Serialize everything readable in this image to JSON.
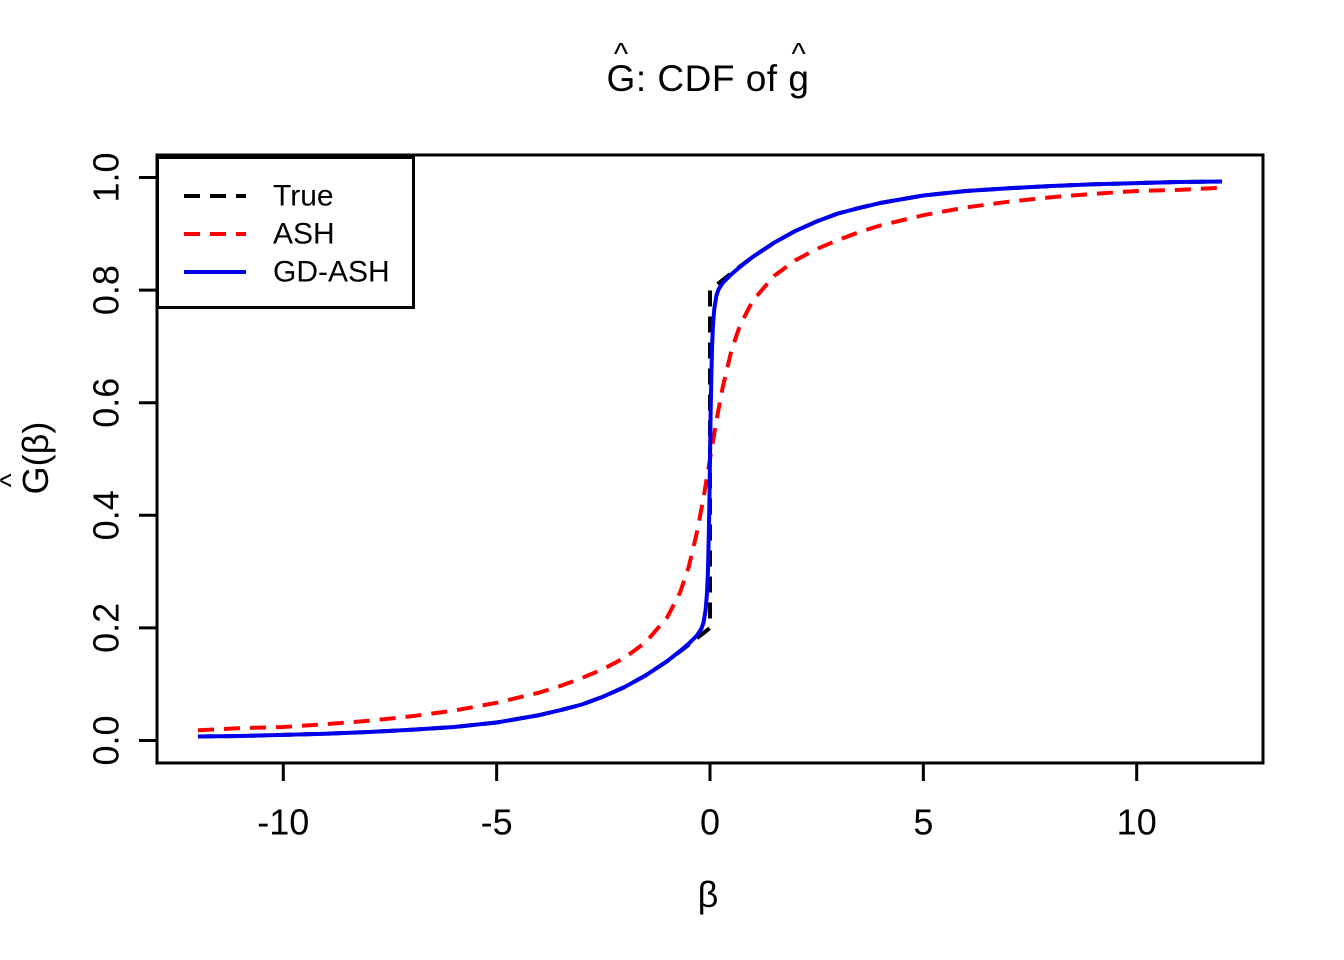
{
  "title": {
    "text": "Ĝ: CDF of ĝ",
    "hat": "^",
    "g_upper": "G",
    "middle": ": CDF of ",
    "g_lower": "g"
  },
  "x_axis": {
    "label": "β",
    "ticks": [
      {
        "value": -10,
        "label": "-10"
      },
      {
        "value": -5,
        "label": "-5"
      },
      {
        "value": 0,
        "label": "0"
      },
      {
        "value": 5,
        "label": "5"
      },
      {
        "value": 10,
        "label": "10"
      }
    ]
  },
  "y_axis": {
    "label_hat": "^",
    "label_g": "G",
    "label_rest": "(β)",
    "ticks": [
      {
        "value": 0.0,
        "label": "0.0"
      },
      {
        "value": 0.2,
        "label": "0.2"
      },
      {
        "value": 0.4,
        "label": "0.4"
      },
      {
        "value": 0.6,
        "label": "0.6"
      },
      {
        "value": 0.8,
        "label": "0.8"
      },
      {
        "value": 1.0,
        "label": "1.0"
      }
    ]
  },
  "legend": {
    "entries": [
      {
        "label": "True",
        "color": "#000000",
        "style": "dashed"
      },
      {
        "label": "ASH",
        "color": "#ff0000",
        "style": "dashed"
      },
      {
        "label": "GD-ASH",
        "color": "#0000ee",
        "style": "solid"
      }
    ]
  },
  "colors": {
    "axis": "#000000",
    "true_line": "#000000",
    "ash_line": "#ff0000",
    "gdash_line": "#0000ee",
    "background": "#ffffff"
  },
  "chart_data": {
    "type": "line",
    "title": "Ĝ: CDF of ĝ",
    "xlabel": "β",
    "ylabel": "Ĝ(β)",
    "xlim": [
      -12.96,
      12.96
    ],
    "ylim": [
      -0.04,
      1.04
    ],
    "grid": false,
    "legend_position": "topleft",
    "series": [
      {
        "name": "True",
        "color": "#000000",
        "style": "dashed",
        "x": [
          -12,
          -11,
          -10,
          -9,
          -8,
          -7,
          -6,
          -5,
          -4,
          -3.5,
          -3,
          -2.5,
          -2,
          -1.5,
          -1,
          -0.7,
          -0.5,
          -0.3,
          -0.15,
          -0.05,
          0,
          0,
          0.05,
          0.15,
          0.3,
          0.5,
          0.7,
          1,
          1.5,
          2,
          2.5,
          3,
          3.5,
          4,
          5,
          6,
          7,
          8,
          9,
          10,
          11,
          12
        ],
        "y": [
          0.007,
          0.008,
          0.01,
          0.012,
          0.015,
          0.019,
          0.024,
          0.032,
          0.045,
          0.054,
          0.064,
          0.078,
          0.095,
          0.116,
          0.141,
          0.158,
          0.17,
          0.182,
          0.191,
          0.197,
          0.2,
          0.8,
          0.803,
          0.809,
          0.818,
          0.83,
          0.842,
          0.859,
          0.884,
          0.905,
          0.922,
          0.936,
          0.946,
          0.955,
          0.968,
          0.976,
          0.981,
          0.985,
          0.988,
          0.99,
          0.992,
          0.993
        ]
      },
      {
        "name": "ASH",
        "color": "#ff0000",
        "style": "dashed",
        "x": [
          -12,
          -11,
          -10,
          -9,
          -8,
          -7,
          -6,
          -5,
          -4,
          -3.5,
          -3,
          -2.5,
          -2,
          -1.5,
          -1,
          -0.7,
          -0.5,
          -0.3,
          -0.15,
          0,
          0.15,
          0.3,
          0.5,
          0.7,
          1,
          1.5,
          2,
          2.5,
          3,
          3.5,
          4,
          5,
          6,
          7,
          8,
          9,
          10,
          11,
          12
        ],
        "y": [
          0.018,
          0.022,
          0.024,
          0.029,
          0.035,
          0.043,
          0.053,
          0.067,
          0.085,
          0.097,
          0.111,
          0.127,
          0.147,
          0.175,
          0.219,
          0.263,
          0.308,
          0.372,
          0.432,
          0.5,
          0.568,
          0.628,
          0.692,
          0.737,
          0.781,
          0.825,
          0.853,
          0.873,
          0.889,
          0.903,
          0.915,
          0.933,
          0.947,
          0.957,
          0.965,
          0.971,
          0.976,
          0.978,
          0.982
        ]
      },
      {
        "name": "GD-ASH",
        "color": "#0000ee",
        "style": "solid",
        "x": [
          -12,
          -11,
          -10,
          -9,
          -8,
          -7,
          -6,
          -5,
          -4,
          -3.5,
          -3,
          -2.5,
          -2,
          -1.5,
          -1,
          -0.7,
          -0.5,
          -0.3,
          -0.2,
          -0.15,
          -0.1,
          -0.07,
          -0.05,
          -0.03,
          -0.015,
          0,
          0.015,
          0.03,
          0.05,
          0.07,
          0.1,
          0.15,
          0.2,
          0.3,
          0.5,
          0.7,
          1,
          1.5,
          2,
          2.5,
          3,
          3.5,
          4,
          5,
          6,
          7,
          8,
          9,
          10,
          11,
          12
        ],
        "y": [
          0.007,
          0.008,
          0.01,
          0.012,
          0.015,
          0.019,
          0.024,
          0.032,
          0.045,
          0.054,
          0.064,
          0.078,
          0.095,
          0.116,
          0.141,
          0.159,
          0.172,
          0.187,
          0.199,
          0.21,
          0.233,
          0.262,
          0.298,
          0.358,
          0.422,
          0.5,
          0.578,
          0.642,
          0.702,
          0.738,
          0.767,
          0.79,
          0.801,
          0.813,
          0.828,
          0.841,
          0.859,
          0.884,
          0.905,
          0.922,
          0.936,
          0.946,
          0.955,
          0.968,
          0.976,
          0.981,
          0.985,
          0.988,
          0.99,
          0.992,
          0.993
        ]
      }
    ]
  }
}
